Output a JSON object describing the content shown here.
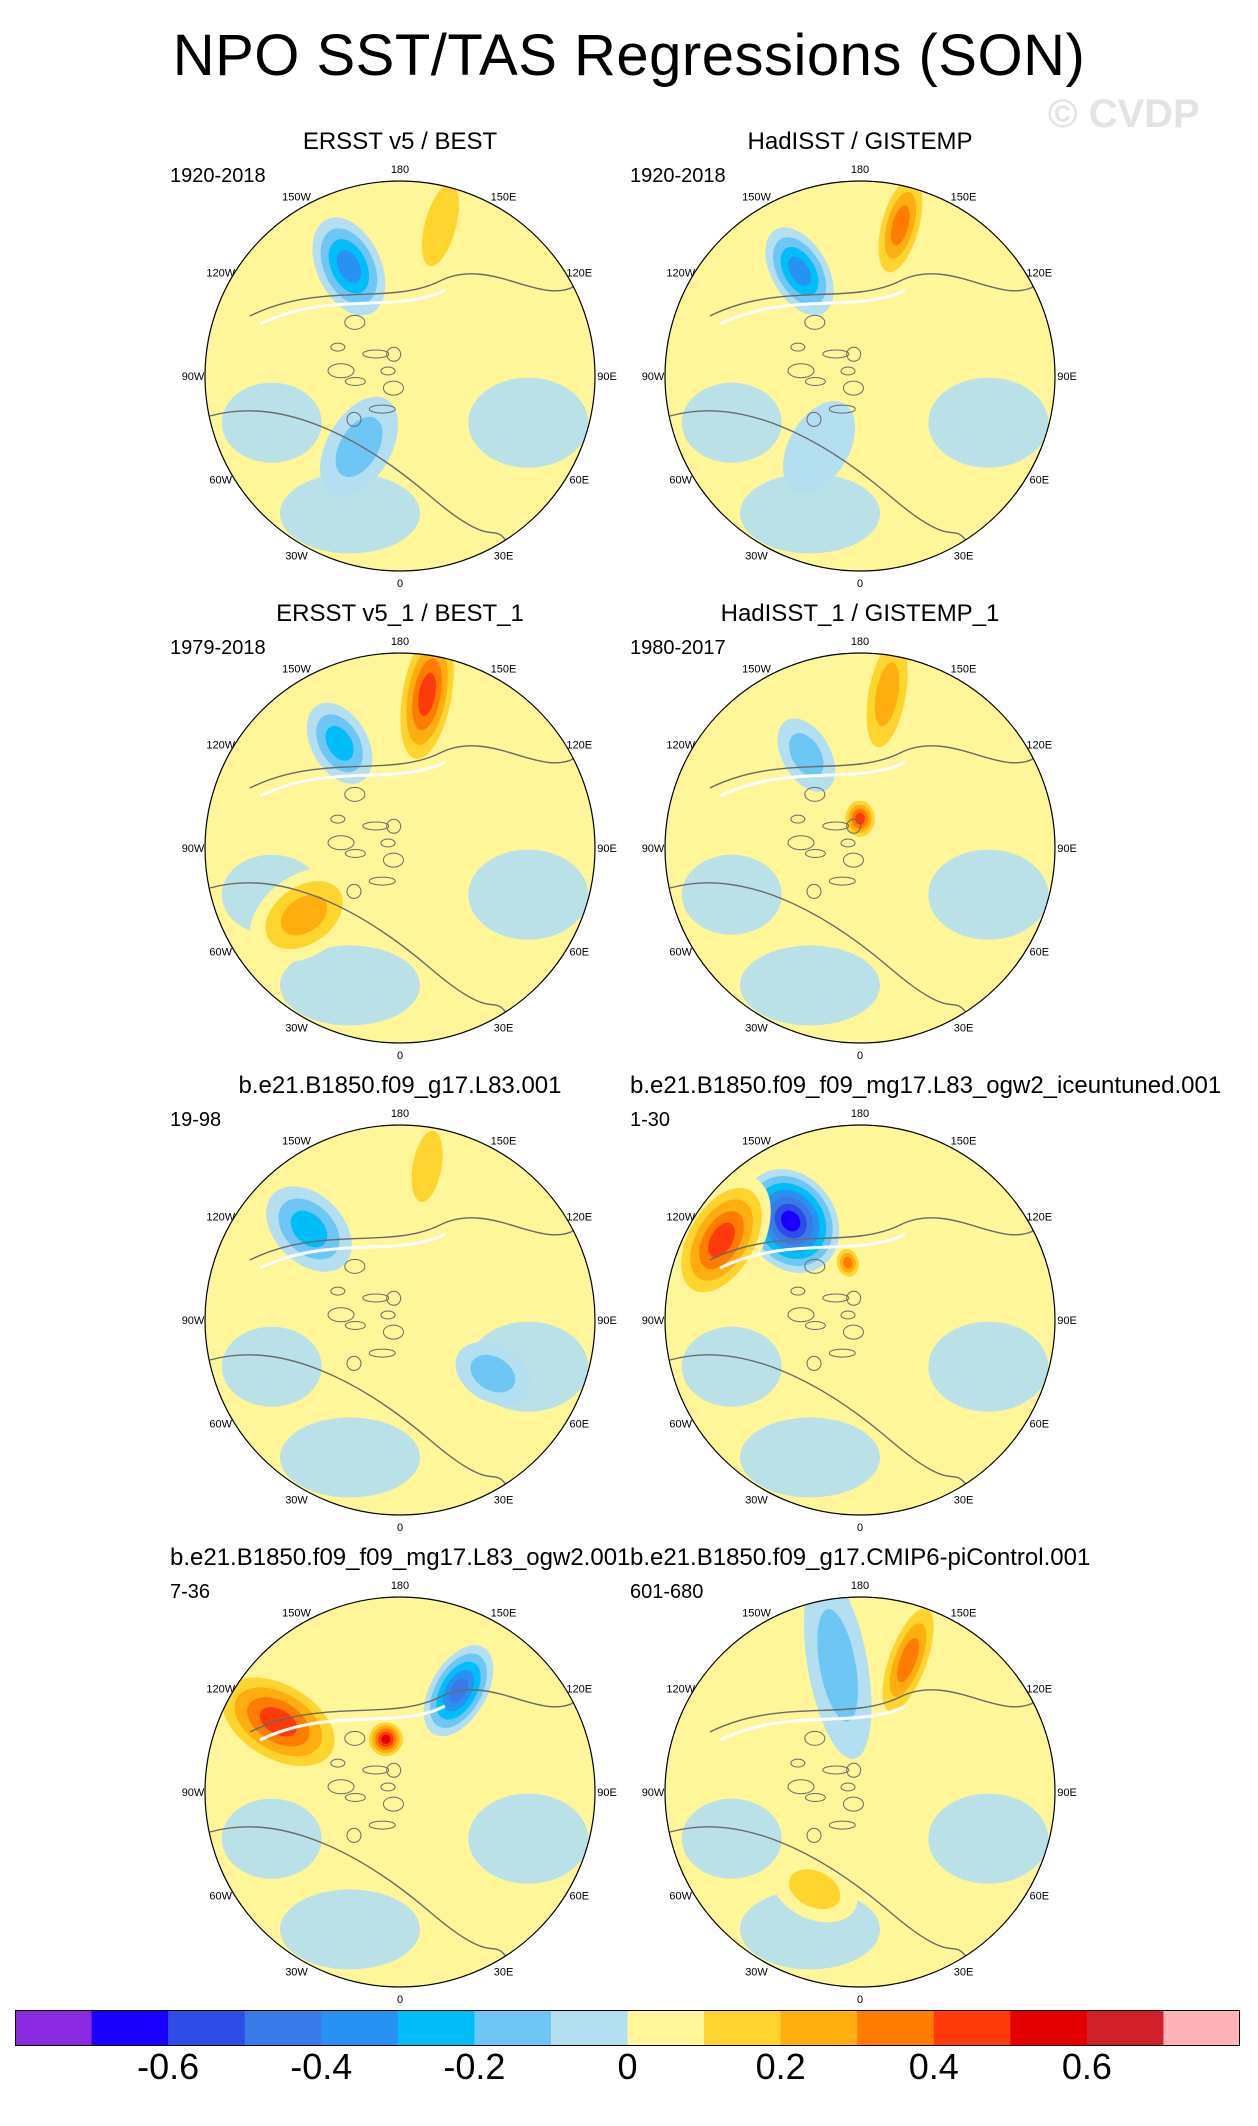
{
  "title": "NPO SST/TAS Regressions (SON)",
  "watermark": "© CVDP",
  "chart_data": {
    "type": "heatmap",
    "projection": "north polar stereographic",
    "variable": "NPO SST/TAS regressions",
    "season": "SON",
    "panels": [
      {
        "title": "ERSST v5 / BEST",
        "years": "1920-2018",
        "patterns": [
          {
            "region": "North Pacific (Gulf of Alaska)",
            "sign": "negative",
            "peak": -0.4
          },
          {
            "region": "Bering Sea / Kamchatka",
            "sign": "positive",
            "peak": 0.2
          },
          {
            "region": "North Atlantic subpolar",
            "sign": "negative",
            "peak": -0.2
          }
        ]
      },
      {
        "title": "HadISST / GISTEMP",
        "years": "1920-2018",
        "patterns": [
          {
            "region": "North Pacific (Gulf of Alaska)",
            "sign": "negative",
            "peak": -0.4
          },
          {
            "region": "Bering Sea / Kamchatka",
            "sign": "positive",
            "peak": 0.4
          },
          {
            "region": "North Atlantic subpolar",
            "sign": "negative",
            "peak": -0.1
          }
        ]
      },
      {
        "title": "ERSST v5_1 / BEST_1",
        "years": "1979-2018",
        "patterns": [
          {
            "region": "North Pacific (Gulf of Alaska)",
            "sign": "negative",
            "peak": -0.3
          },
          {
            "region": "Bering Sea / Kamchatka",
            "sign": "positive",
            "peak": 0.5
          },
          {
            "region": "North Atlantic",
            "sign": "positive",
            "peak": 0.3
          }
        ]
      },
      {
        "title": "HadISST_1 / GISTEMP_1",
        "years": "1980-2017",
        "patterns": [
          {
            "region": "North Pacific (Gulf of Alaska)",
            "sign": "negative",
            "peak": -0.2
          },
          {
            "region": "Bering Sea / Kamchatka",
            "sign": "positive",
            "peak": 0.3
          },
          {
            "region": "Canadian Arctic",
            "sign": "positive",
            "peak": 0.5
          }
        ]
      },
      {
        "title": "b.e21.B1850.f09_g17.L83.001",
        "years": "19-98",
        "patterns": [
          {
            "region": "North Pacific (Gulf of Alaska)",
            "sign": "negative",
            "peak": -0.3
          },
          {
            "region": "Bering Sea",
            "sign": "positive",
            "peak": 0.2
          },
          {
            "region": "Eurasia",
            "sign": "negative",
            "peak": -0.2
          }
        ]
      },
      {
        "title": "b.e21.B1850.f09_f09_mg17.L83_ogw2_iceuntuned.001",
        "years": "1-30",
        "patterns": [
          {
            "region": "North Pacific (Gulf of Alaska)",
            "sign": "negative",
            "peak": -0.7
          },
          {
            "region": "North America west",
            "sign": "positive",
            "peak": 0.5
          },
          {
            "region": "Alaska",
            "sign": "positive",
            "peak": 0.4
          }
        ]
      },
      {
        "title": "b.e21.B1850.f09_f09_mg17.L83_ogw2.001",
        "years": "7-36",
        "patterns": [
          {
            "region": "North Pacific / North America west",
            "sign": "positive",
            "peak": 0.5
          },
          {
            "region": "Siberia",
            "sign": "negative",
            "peak": -0.5
          },
          {
            "region": "Alaska",
            "sign": "positive",
            "peak": 0.6
          }
        ]
      },
      {
        "title": "b.e21.B1850.f09_g17.CMIP6-piControl.001",
        "years": "601-680",
        "patterns": [
          {
            "region": "North Pacific (Gulf of Alaska)",
            "sign": "negative",
            "peak": -0.2
          },
          {
            "region": "Bering Sea / Kamchatka",
            "sign": "positive",
            "peak": 0.4
          },
          {
            "region": "North Atlantic subtropical",
            "sign": "positive",
            "peak": 0.2
          }
        ]
      }
    ],
    "longitude_labels": [
      "180",
      "150E",
      "120E",
      "90E",
      "60E",
      "30E",
      "0",
      "30W",
      "60W",
      "90W",
      "120W",
      "150W"
    ],
    "colorbar": {
      "colors": [
        "#8a2be2",
        "#1a00ff",
        "#2e4de6",
        "#3a7ae8",
        "#2892f2",
        "#00bef7",
        "#6ec6f5",
        "#b3dff0",
        "#fff699",
        "#ffd42e",
        "#ffad0f",
        "#ff7c00",
        "#ff3a0a",
        "#e50000",
        "#d0202a",
        "#ffb3b8"
      ],
      "tick_labels": [
        "-0.6",
        "-0.4",
        "-0.2",
        "0",
        "0.2",
        "0.4",
        "0.6"
      ],
      "tick_values": [
        -0.6,
        -0.4,
        -0.2,
        0,
        0.2,
        0.4,
        0.6
      ],
      "range": [
        -0.8,
        0.8
      ]
    }
  }
}
